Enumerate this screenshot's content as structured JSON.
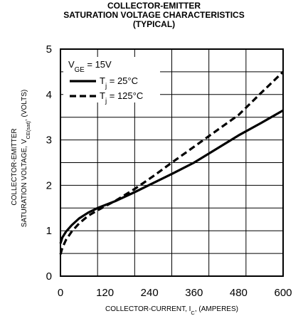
{
  "title": {
    "line1": "COLLECTOR-EMITTER",
    "line2": "SATURATION VOLTAGE CHARACTERISTICS",
    "line3": "(TYPICAL)"
  },
  "chart_data": {
    "type": "line",
    "xlabel": {
      "text": "COLLECTOR-CURRENT, I",
      "sub": "C",
      "suffix": ", (AMPERES)"
    },
    "ylabel": {
      "line1": "COLLECTOR-EMITTER",
      "line2_text": "SATURATION VOLTAGE, V",
      "line2_sub": "CE(sat)",
      "line2_suffix": ", (VOLTS)"
    },
    "xlim": [
      0,
      600
    ],
    "ylim": [
      0,
      5
    ],
    "xticks": [
      0,
      120,
      240,
      360,
      480,
      600
    ],
    "yticks": [
      0,
      1,
      2,
      3,
      4,
      5
    ],
    "grid": true,
    "legend": {
      "position": "top-left",
      "header": {
        "text": "V",
        "sub": "GE",
        "suffix": " = 15V"
      }
    },
    "series": [
      {
        "name": "T = 25°C",
        "name_parts": {
          "text": "T",
          "sub": "j",
          "suffix": " = 25°C"
        },
        "style": "solid",
        "color": "#000000",
        "x": [
          0,
          5,
          15,
          30,
          50,
          75,
          100,
          150,
          200,
          250,
          300,
          360,
          420,
          480,
          540,
          600
        ],
        "y": [
          0.72,
          0.85,
          0.98,
          1.12,
          1.27,
          1.4,
          1.5,
          1.66,
          1.85,
          2.05,
          2.25,
          2.5,
          2.8,
          3.1,
          3.37,
          3.65
        ]
      },
      {
        "name": "T = 125°C",
        "name_parts": {
          "text": "T",
          "sub": "j",
          "suffix": " = 125°C"
        },
        "style": "dashed",
        "color": "#000000",
        "x": [
          0,
          5,
          15,
          30,
          50,
          75,
          100,
          150,
          200,
          250,
          300,
          360,
          420,
          480,
          540,
          600
        ],
        "y": [
          0.48,
          0.62,
          0.8,
          0.98,
          1.16,
          1.33,
          1.45,
          1.67,
          1.92,
          2.2,
          2.5,
          2.85,
          3.2,
          3.55,
          4.03,
          4.5
        ]
      }
    ]
  }
}
